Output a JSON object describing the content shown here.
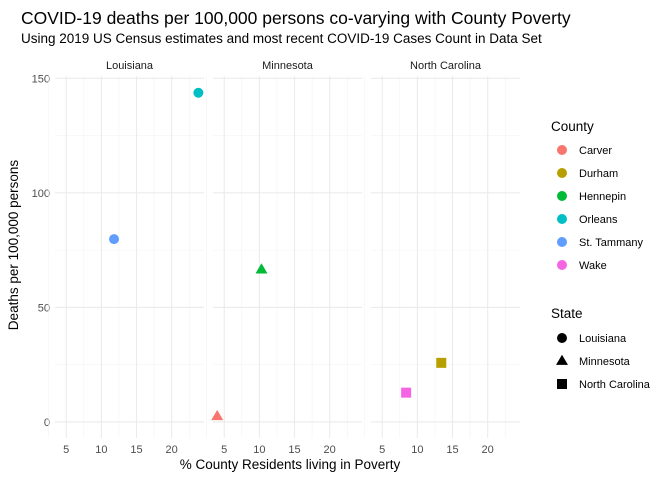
{
  "chart_data": {
    "type": "scatter",
    "title": "COVID-19 deaths per 100,000 persons co-varying with County Poverty",
    "subtitle": "Using 2019 US Census estimates and most recent COVID-19 Cases Count in Data Set",
    "xlabel": "% County Residents living in Poverty",
    "ylabel": "Deaths per 100,000 persons",
    "xlim": [
      3.4,
      24.6
    ],
    "ylim": [
      -7,
      151
    ],
    "x_ticks": [
      5,
      10,
      15,
      20
    ],
    "y_ticks": [
      0,
      50,
      100,
      150
    ],
    "grid": true,
    "facets": [
      "Louisiana",
      "Minnesota",
      "North Carolina"
    ],
    "legend_position": "right",
    "color_legend": {
      "title": "County",
      "entries": [
        {
          "label": "Carver",
          "color": "#F8766D"
        },
        {
          "label": "Durham",
          "color": "#B79F00"
        },
        {
          "label": "Hennepin",
          "color": "#00BA38"
        },
        {
          "label": "Orleans",
          "color": "#00BFC4"
        },
        {
          "label": "St. Tammany",
          "color": "#619CFF"
        },
        {
          "label": "Wake",
          "color": "#F564E3"
        }
      ]
    },
    "shape_legend": {
      "title": "State",
      "entries": [
        {
          "label": "Louisiana",
          "shape": "circle"
        },
        {
          "label": "Minnesota",
          "shape": "triangle"
        },
        {
          "label": "North Carolina",
          "shape": "square"
        }
      ]
    },
    "points": [
      {
        "facet": "Louisiana",
        "county": "Orleans",
        "x": 23.8,
        "y": 143.7
      },
      {
        "facet": "Louisiana",
        "county": "St. Tammany",
        "x": 11.8,
        "y": 79.8
      },
      {
        "facet": "Minnesota",
        "county": "Hennepin",
        "x": 10.3,
        "y": 66.5
      },
      {
        "facet": "Minnesota",
        "county": "Carver",
        "x": 4.0,
        "y": 2.5
      },
      {
        "facet": "North Carolina",
        "county": "Durham",
        "x": 13.4,
        "y": 25.8
      },
      {
        "facet": "North Carolina",
        "county": "Wake",
        "x": 8.4,
        "y": 12.8
      }
    ]
  }
}
